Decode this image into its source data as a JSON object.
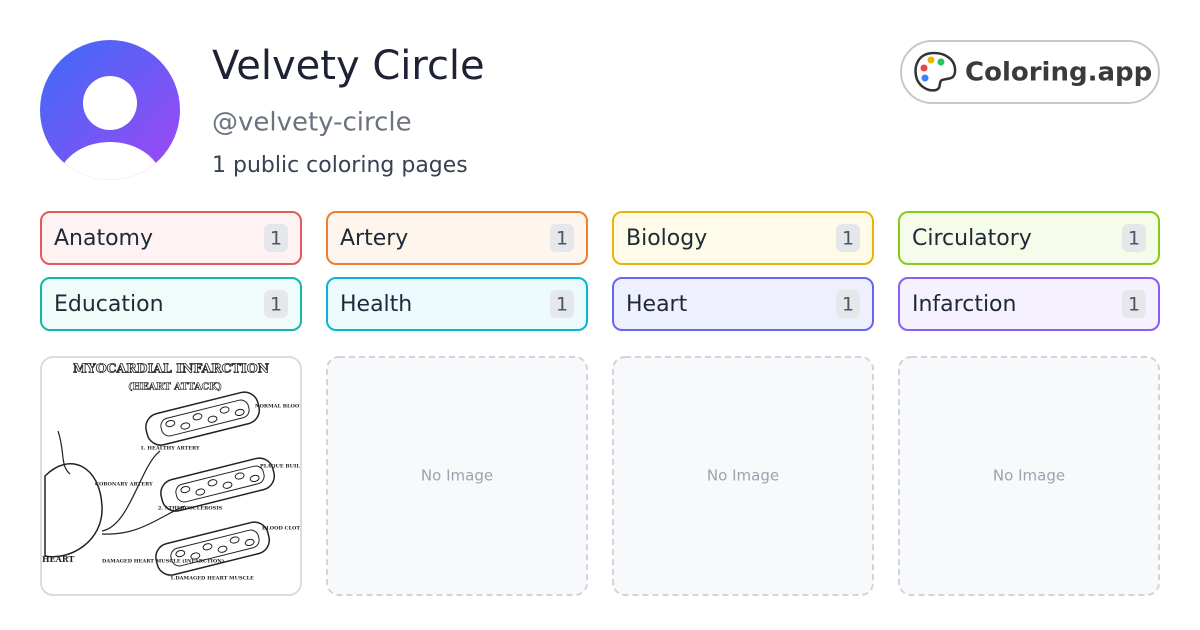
{
  "profile": {
    "name": "Velvety Circle",
    "handle": "@velvety-circle",
    "summary": "1 public coloring pages"
  },
  "brand": {
    "label": "Coloring.app"
  },
  "tags": [
    {
      "name": "Anatomy",
      "count": 1,
      "color": "#e15b5b",
      "background": "#fef2f2"
    },
    {
      "name": "Artery",
      "count": 1,
      "color": "#ee7e30",
      "background": "#fef5ed"
    },
    {
      "name": "Biology",
      "count": 1,
      "color": "#eab308",
      "background": "#fefce8"
    },
    {
      "name": "Circulatory",
      "count": 1,
      "color": "#84cc16",
      "background": "#f6fcea"
    },
    {
      "name": "Education",
      "count": 1,
      "color": "#14b8a6",
      "background": "#effcf9"
    },
    {
      "name": "Health",
      "count": 1,
      "color": "#06b6d4",
      "background": "#ecfcfe"
    },
    {
      "name": "Heart",
      "count": 1,
      "color": "#6366f1",
      "background": "#eef0fe"
    },
    {
      "name": "Infarction",
      "count": 1,
      "color": "#8b5cf6",
      "background": "#f5f1fe"
    }
  ],
  "cards": [
    {
      "image": {
        "title": "MYOCARDIAL INFARCTION",
        "subtitle": "(HEART ATTACK)",
        "labels": [
          "NORMAL BLOOD FLOW",
          "1. HEALTHY ARTERY",
          "PLAQUE BUILD",
          "CORONARY ARTERY",
          "2. ATHEROSCLEROSIS",
          "BLOOD CLOT",
          "DAMAGED HEART MUSCLE (INFARCTION)",
          "1.DAMAGED HEART MUSCLE",
          "HEART"
        ]
      }
    },
    {
      "placeholder": "No Image"
    },
    {
      "placeholder": "No Image"
    },
    {
      "placeholder": "No Image"
    }
  ]
}
